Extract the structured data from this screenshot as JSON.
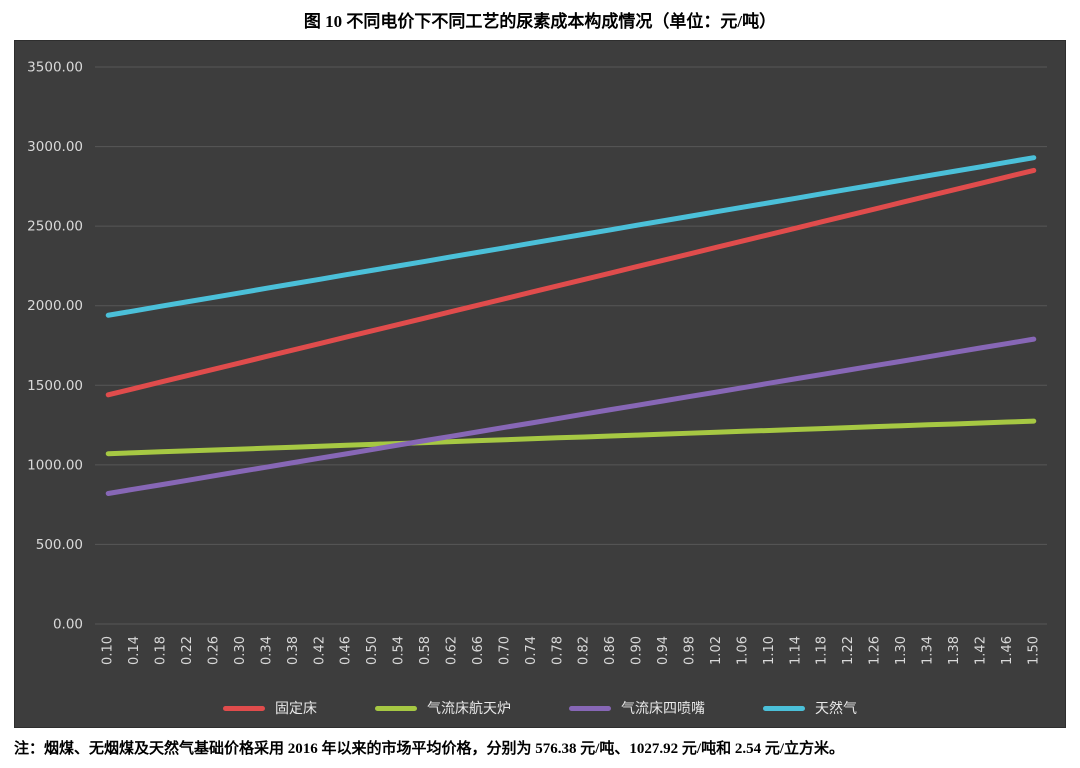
{
  "title": "图 10 不同电价下不同工艺的尿素成本构成情况（单位：元/吨）",
  "note": "注：烟煤、无烟煤及天然气基础价格采用 2016 年以来的市场平均价格，分别为 576.38 元/吨、1027.92 元/吨和 2.54 元/立方米。",
  "panel": {
    "background": "#3d3d3d",
    "gridline_color": "#575757",
    "tick_color": "#d9d9d9"
  },
  "chart_data": {
    "type": "line",
    "title": "图 10 不同电价下不同工艺的尿素成本构成情况（单位：元/吨）",
    "xlabel": "",
    "ylabel": "",
    "ylim": [
      0,
      3500
    ],
    "ytick_step": 500,
    "grid": true,
    "legend_position": "bottom",
    "y_tick_labels": [
      "3500.00",
      "3000.00",
      "2500.00",
      "2000.00",
      "1500.00",
      "1000.00",
      "500.00",
      "0.00"
    ],
    "categories": [
      "0.10",
      "0.14",
      "0.18",
      "0.22",
      "0.26",
      "0.30",
      "0.34",
      "0.38",
      "0.42",
      "0.46",
      "0.50",
      "0.54",
      "0.58",
      "0.62",
      "0.66",
      "0.70",
      "0.74",
      "0.78",
      "0.82",
      "0.86",
      "0.90",
      "0.94",
      "0.98",
      "1.02",
      "1.06",
      "1.10",
      "1.14",
      "1.18",
      "1.22",
      "1.26",
      "1.30",
      "1.34",
      "1.38",
      "1.42",
      "1.46",
      "1.50"
    ],
    "series": [
      {
        "id": "fixed-bed",
        "name": "固定床",
        "color": "#e04c4c",
        "values": [
          1440,
          1480,
          1521,
          1561,
          1601,
          1641,
          1682,
          1722,
          1762,
          1803,
          1843,
          1883,
          1923,
          1964,
          2004,
          2044,
          2085,
          2125,
          2165,
          2205,
          2246,
          2286,
          2326,
          2367,
          2407,
          2447,
          2487,
          2528,
          2568,
          2608,
          2649,
          2689,
          2729,
          2769,
          2810,
          2850
        ]
      },
      {
        "id": "entrained-flow-aerospace-furnace",
        "name": "气流床航天炉",
        "color": "#a6c843",
        "values": [
          1070,
          1076,
          1082,
          1088,
          1093,
          1099,
          1105,
          1111,
          1117,
          1123,
          1129,
          1134,
          1140,
          1146,
          1152,
          1158,
          1164,
          1170,
          1175,
          1181,
          1187,
          1193,
          1199,
          1205,
          1211,
          1216,
          1222,
          1228,
          1234,
          1240,
          1246,
          1252,
          1257,
          1263,
          1269,
          1275
        ]
      },
      {
        "id": "entrained-flow-four-nozzle",
        "name": "气流床四喷嘴",
        "color": "#8767b6",
        "values": [
          820,
          848,
          875,
          903,
          931,
          959,
          986,
          1014,
          1042,
          1069,
          1097,
          1125,
          1153,
          1180,
          1208,
          1236,
          1263,
          1291,
          1319,
          1347,
          1374,
          1402,
          1430,
          1457,
          1485,
          1513,
          1541,
          1568,
          1596,
          1624,
          1651,
          1679,
          1707,
          1735,
          1762,
          1790
        ]
      },
      {
        "id": "natural-gas",
        "name": "天然气",
        "color": "#4bc0d9",
        "values": [
          1940,
          1968,
          1997,
          2025,
          2053,
          2081,
          2110,
          2138,
          2166,
          2195,
          2223,
          2251,
          2279,
          2308,
          2336,
          2364,
          2393,
          2421,
          2449,
          2477,
          2506,
          2534,
          2562,
          2591,
          2619,
          2647,
          2675,
          2704,
          2732,
          2760,
          2789,
          2817,
          2845,
          2873,
          2902,
          2930
        ]
      }
    ]
  }
}
